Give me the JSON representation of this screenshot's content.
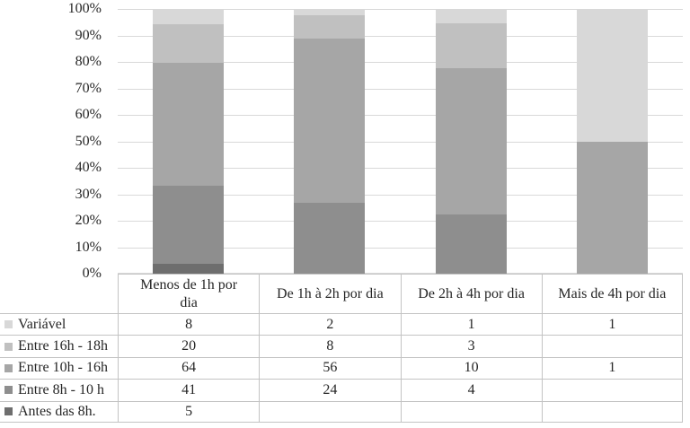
{
  "colors": {
    "background": "#ffffff",
    "gridline": "#d9d9d9",
    "table_border": "#c3c3c3",
    "text": "#262626"
  },
  "chart_data": {
    "type": "bar",
    "variant": "stacked-100-percent-column",
    "title": "",
    "xlabel": "",
    "ylabel": "",
    "grid": true,
    "ylim": [
      0,
      100
    ],
    "y_ticks": [
      "100%",
      "90%",
      "80%",
      "70%",
      "60%",
      "50%",
      "40%",
      "30%",
      "20%",
      "10%",
      "0%"
    ],
    "legend_position": "data-table-row-headers",
    "categories": [
      "Menos de 1h por dia",
      "De 1h à 2h por dia",
      "De 2h à 4h por dia",
      "Mais de 4h por dia"
    ],
    "series": [
      {
        "name": "Variável",
        "color": "#d8d8d8",
        "values": [
          8,
          2,
          1,
          1
        ]
      },
      {
        "name": "Entre 16h - 18h",
        "color": "#c0c0c0",
        "values": [
          20,
          8,
          3,
          null
        ]
      },
      {
        "name": "Entre 10h - 16h",
        "color": "#a6a6a6",
        "values": [
          64,
          56,
          10,
          1
        ]
      },
      {
        "name": "Entre 8h - 10 h",
        "color": "#8e8e8e",
        "values": [
          41,
          24,
          4,
          null
        ]
      },
      {
        "name": "Antes das 8h.",
        "color": "#6e6e6e",
        "values": [
          5,
          null,
          null,
          null
        ]
      }
    ],
    "stack_order": "first series listed is the top segment of each bar"
  }
}
